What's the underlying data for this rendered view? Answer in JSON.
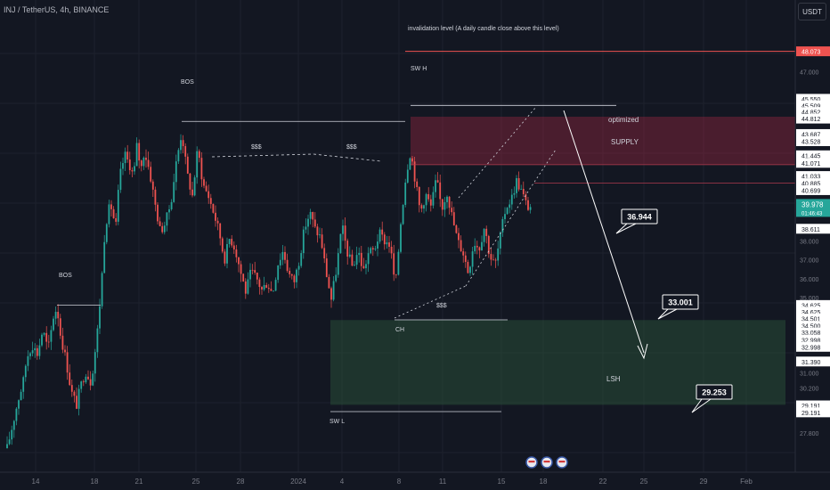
{
  "header": {
    "symbol": "INJ / TetherUS, 4h, BINANCE",
    "currency": "USDT"
  },
  "chart_data": {
    "type": "candlestick",
    "symbol": "INJ / TetherUS",
    "interval": "4h",
    "exchange": "BINANCE",
    "ylim": [
      27.0,
      49.0
    ],
    "y_ticks": [
      47.0,
      38.0,
      37.0,
      36.0,
      35.0,
      31.0,
      30.2,
      29.0,
      27.8
    ],
    "y_tick_labels": [
      "47.000",
      "38.000",
      "37.000",
      "36.000",
      "35.000",
      "31.000",
      "30.200",
      "29.000",
      "27.800"
    ],
    "x_labels": [
      "14",
      "18",
      "21",
      "25",
      "28",
      "2024",
      "4",
      "8",
      "11",
      "15",
      "18",
      "22",
      "25",
      "29",
      "Feb"
    ],
    "price_tags": [
      {
        "label": "48.073",
        "value": 48.073,
        "style": "red"
      },
      {
        "label": "45.550",
        "value": 45.55
      },
      {
        "label": "45.509",
        "value": 45.2
      },
      {
        "label": "44.852",
        "value": 44.85
      },
      {
        "label": "44.812",
        "value": 44.5
      },
      {
        "label": "43.687",
        "value": 43.68
      },
      {
        "label": "43.528",
        "value": 43.3
      },
      {
        "label": "41.445",
        "value": 42.55
      },
      {
        "label": "41.071",
        "value": 42.15
      },
      {
        "label": "41.033",
        "value": 41.45
      },
      {
        "label": "40.885",
        "value": 41.07
      },
      {
        "label": "40.699",
        "value": 40.7
      },
      {
        "label": "38.611",
        "value": 38.65
      },
      {
        "label": "34.625",
        "value": 34.6
      },
      {
        "label": "34.625",
        "value": 34.25
      },
      {
        "label": "34.501",
        "value": 33.88
      },
      {
        "label": "34.500",
        "value": 33.5
      },
      {
        "label": "33.058",
        "value": 33.14
      },
      {
        "label": "32.998",
        "value": 32.76
      },
      {
        "label": "32.998",
        "value": 32.38
      },
      {
        "label": "31.390",
        "value": 31.6
      },
      {
        "label": "29.191",
        "value": 29.27
      },
      {
        "label": "29.191",
        "value": 28.9
      }
    ],
    "current_price": {
      "label": "39.978",
      "countdown": "01:46:43",
      "value": 39.85
    },
    "zones": [
      {
        "name": "supply",
        "labels": [
          "optimized",
          "SUPPLY"
        ],
        "from": 42.05,
        "to": 44.6
      },
      {
        "name": "demand",
        "label": "LSH",
        "from": 29.3,
        "to": 33.8
      }
    ],
    "annotations": {
      "invalidation": "invalidation level (A daily candle close above this level)",
      "bos_left": "BOS",
      "bos_top": "BOS",
      "liq1": "$$$",
      "liq2": "$$$",
      "liq3": "$$$",
      "sw_h": "SW H",
      "sw_l": "SW L",
      "ch": "CH",
      "target1": "36.944",
      "target2": "33.001",
      "target3": "29.253"
    },
    "colors": {
      "up": "#26a69a",
      "down": "#ef5350",
      "background": "#131722"
    }
  }
}
